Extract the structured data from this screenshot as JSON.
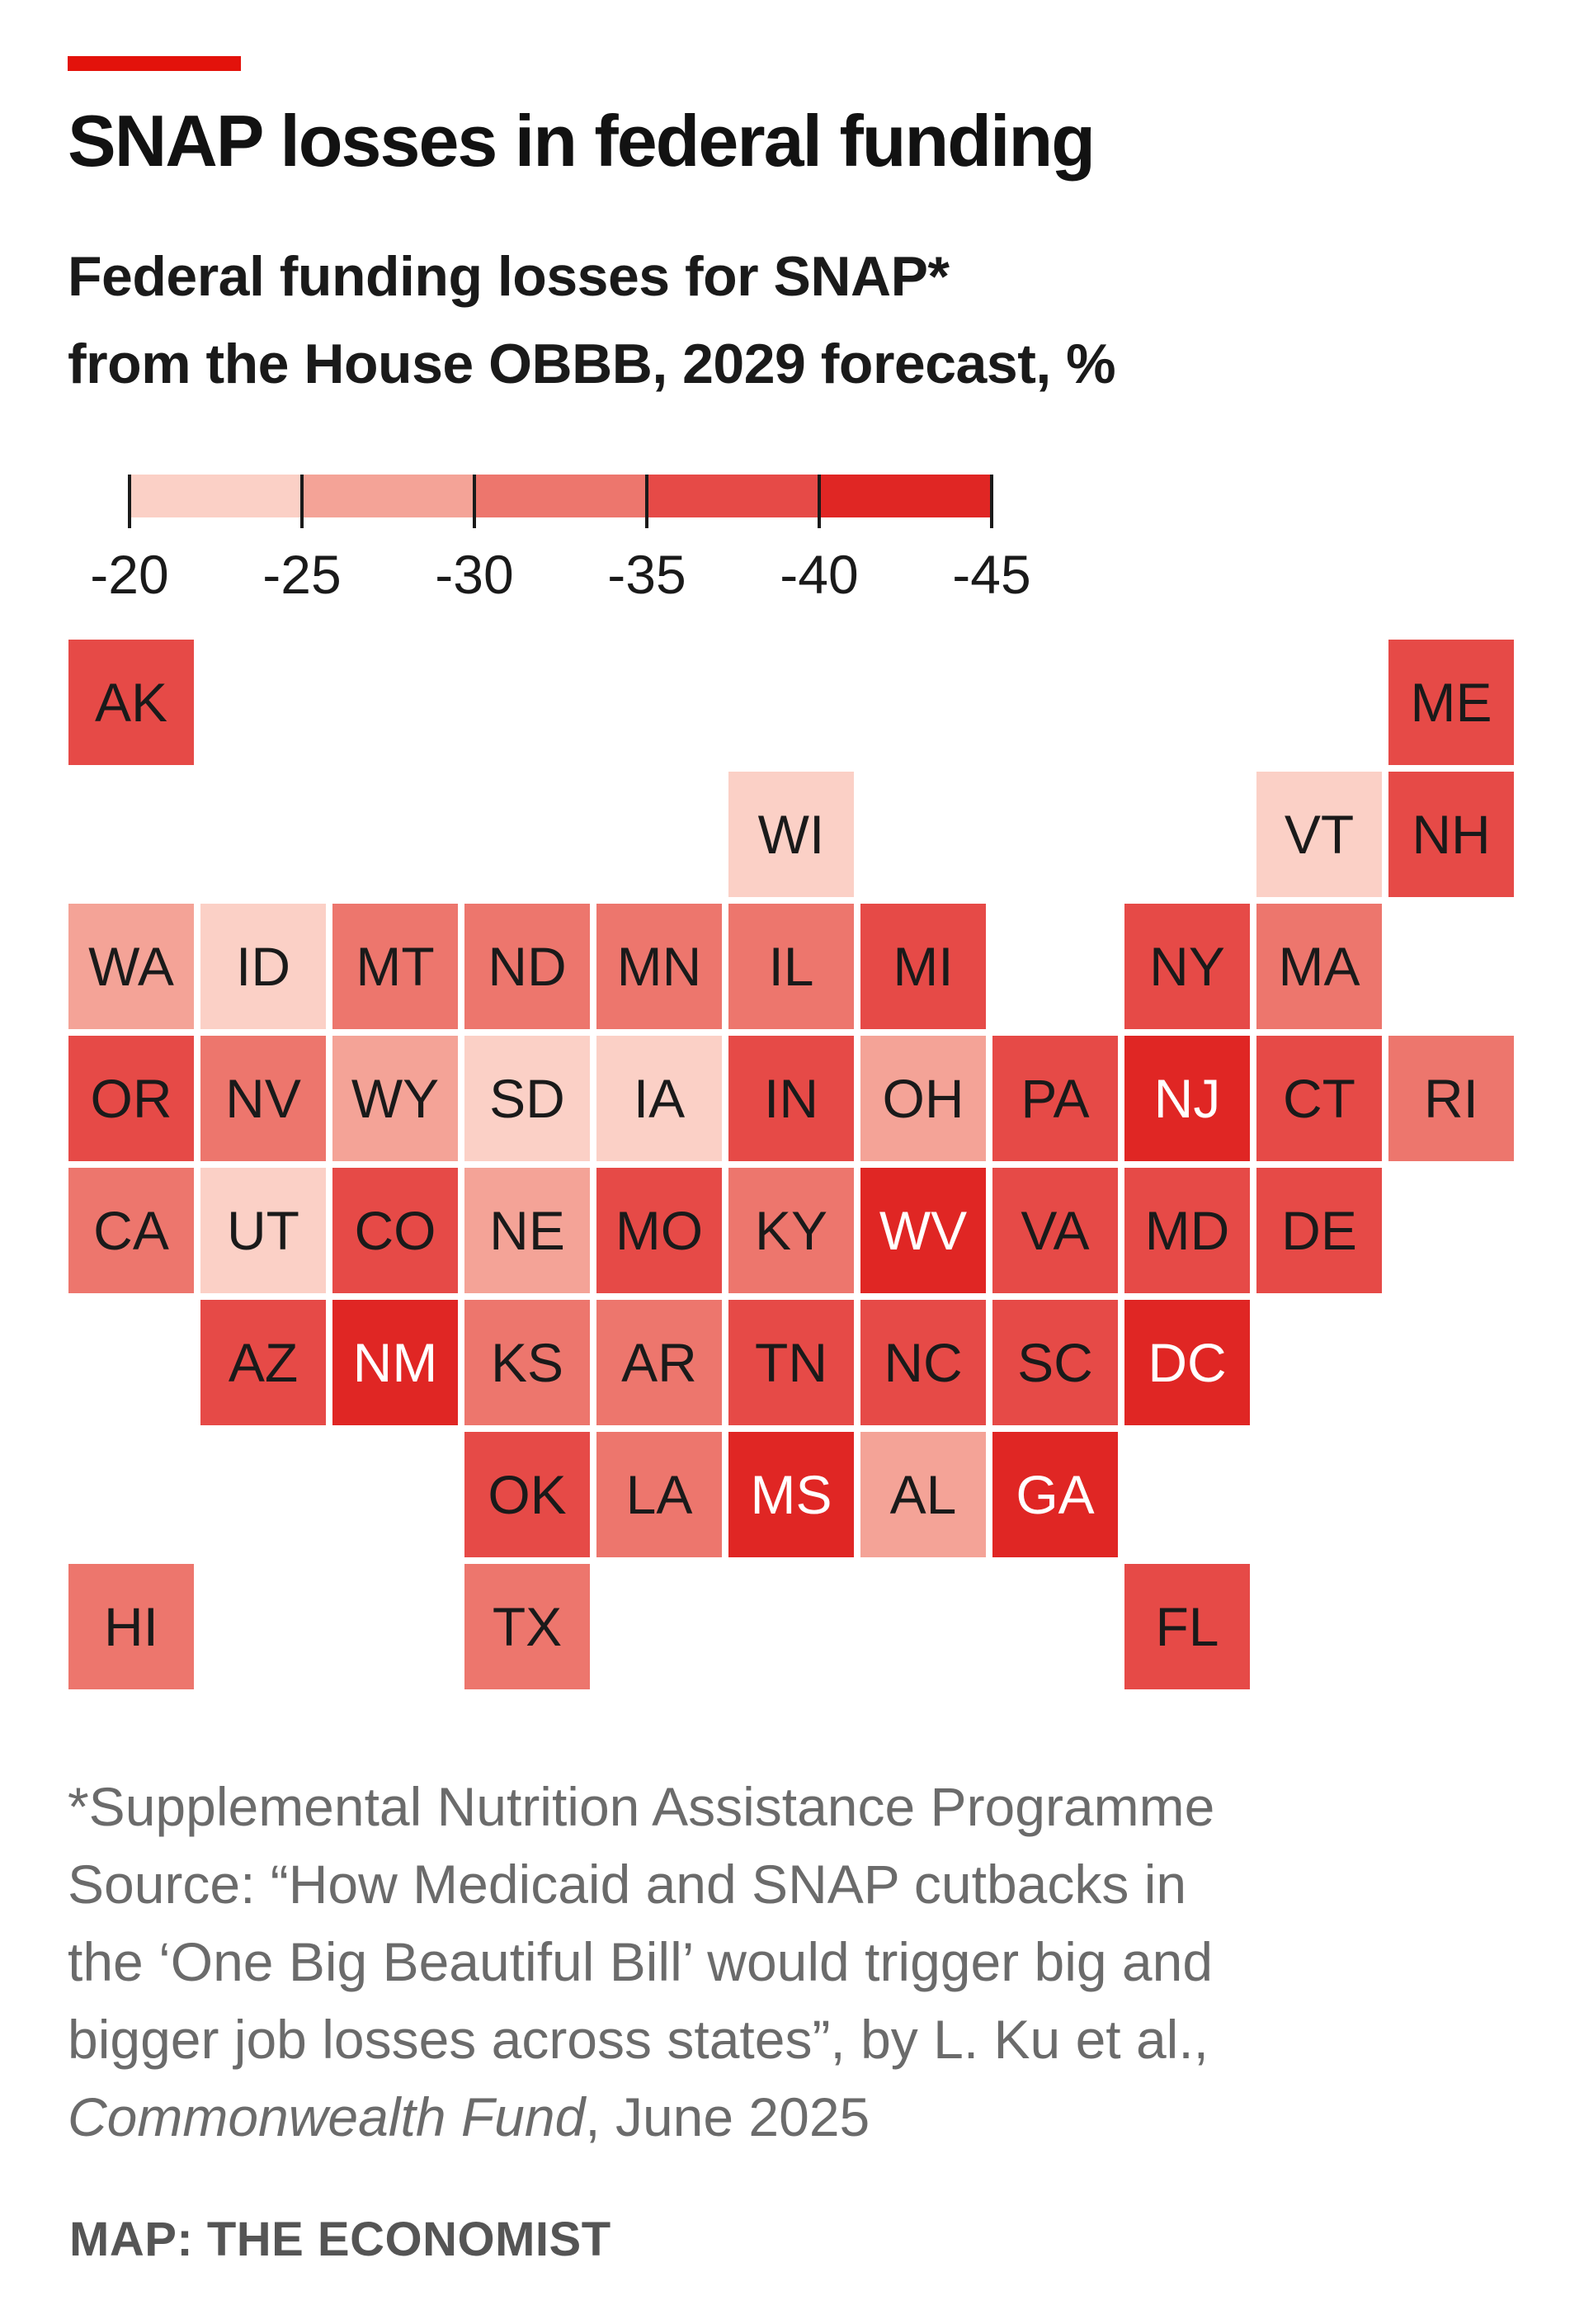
{
  "header": {
    "title": "SNAP losses in federal funding",
    "subtitle_line1": "Federal funding losses for SNAP*",
    "subtitle_line2": "from the House OBBB, 2029 forecast, %"
  },
  "colors": {
    "accent": "#e3120b",
    "bins": [
      "#fbd0c6",
      "#f4a397",
      "#ed766d",
      "#e64a47",
      "#e02624"
    ]
  },
  "legend": {
    "labels": [
      "-20",
      "-25",
      "-30",
      "-35",
      "-40",
      "-45"
    ]
  },
  "chart_data": {
    "type": "tile-map",
    "value_unit": "% change in federal SNAP funding (legend bin)",
    "bins": [
      {
        "range": [
          -20,
          -25
        ]
      },
      {
        "range": [
          -25,
          -30
        ]
      },
      {
        "range": [
          -30,
          -35
        ]
      },
      {
        "range": [
          -35,
          -40
        ]
      },
      {
        "range": [
          -40,
          -45
        ]
      }
    ],
    "states": [
      {
        "abbr": "AK",
        "col": 0,
        "row": 0,
        "bin": 3
      },
      {
        "abbr": "ME",
        "col": 10,
        "row": 0,
        "bin": 3
      },
      {
        "abbr": "WI",
        "col": 5,
        "row": 1,
        "bin": 0
      },
      {
        "abbr": "VT",
        "col": 9,
        "row": 1,
        "bin": 0
      },
      {
        "abbr": "NH",
        "col": 10,
        "row": 1,
        "bin": 3
      },
      {
        "abbr": "WA",
        "col": 0,
        "row": 2,
        "bin": 1
      },
      {
        "abbr": "ID",
        "col": 1,
        "row": 2,
        "bin": 0
      },
      {
        "abbr": "MT",
        "col": 2,
        "row": 2,
        "bin": 2
      },
      {
        "abbr": "ND",
        "col": 3,
        "row": 2,
        "bin": 2
      },
      {
        "abbr": "MN",
        "col": 4,
        "row": 2,
        "bin": 2
      },
      {
        "abbr": "IL",
        "col": 5,
        "row": 2,
        "bin": 2
      },
      {
        "abbr": "MI",
        "col": 6,
        "row": 2,
        "bin": 3
      },
      {
        "abbr": "NY",
        "col": 8,
        "row": 2,
        "bin": 3
      },
      {
        "abbr": "MA",
        "col": 9,
        "row": 2,
        "bin": 2
      },
      {
        "abbr": "OR",
        "col": 0,
        "row": 3,
        "bin": 3
      },
      {
        "abbr": "NV",
        "col": 1,
        "row": 3,
        "bin": 2
      },
      {
        "abbr": "WY",
        "col": 2,
        "row": 3,
        "bin": 1
      },
      {
        "abbr": "SD",
        "col": 3,
        "row": 3,
        "bin": 0
      },
      {
        "abbr": "IA",
        "col": 4,
        "row": 3,
        "bin": 0
      },
      {
        "abbr": "IN",
        "col": 5,
        "row": 3,
        "bin": 3
      },
      {
        "abbr": "OH",
        "col": 6,
        "row": 3,
        "bin": 1
      },
      {
        "abbr": "PA",
        "col": 7,
        "row": 3,
        "bin": 3
      },
      {
        "abbr": "NJ",
        "col": 8,
        "row": 3,
        "bin": 4
      },
      {
        "abbr": "CT",
        "col": 9,
        "row": 3,
        "bin": 3
      },
      {
        "abbr": "RI",
        "col": 10,
        "row": 3,
        "bin": 2
      },
      {
        "abbr": "CA",
        "col": 0,
        "row": 4,
        "bin": 2
      },
      {
        "abbr": "UT",
        "col": 1,
        "row": 4,
        "bin": 0
      },
      {
        "abbr": "CO",
        "col": 2,
        "row": 4,
        "bin": 3
      },
      {
        "abbr": "NE",
        "col": 3,
        "row": 4,
        "bin": 1
      },
      {
        "abbr": "MO",
        "col": 4,
        "row": 4,
        "bin": 3
      },
      {
        "abbr": "KY",
        "col": 5,
        "row": 4,
        "bin": 2
      },
      {
        "abbr": "WV",
        "col": 6,
        "row": 4,
        "bin": 4
      },
      {
        "abbr": "VA",
        "col": 7,
        "row": 4,
        "bin": 3
      },
      {
        "abbr": "MD",
        "col": 8,
        "row": 4,
        "bin": 3
      },
      {
        "abbr": "DE",
        "col": 9,
        "row": 4,
        "bin": 3
      },
      {
        "abbr": "AZ",
        "col": 1,
        "row": 5,
        "bin": 3
      },
      {
        "abbr": "NM",
        "col": 2,
        "row": 5,
        "bin": 4
      },
      {
        "abbr": "KS",
        "col": 3,
        "row": 5,
        "bin": 2
      },
      {
        "abbr": "AR",
        "col": 4,
        "row": 5,
        "bin": 2
      },
      {
        "abbr": "TN",
        "col": 5,
        "row": 5,
        "bin": 3
      },
      {
        "abbr": "NC",
        "col": 6,
        "row": 5,
        "bin": 3
      },
      {
        "abbr": "SC",
        "col": 7,
        "row": 5,
        "bin": 3
      },
      {
        "abbr": "DC",
        "col": 8,
        "row": 5,
        "bin": 4
      },
      {
        "abbr": "OK",
        "col": 3,
        "row": 6,
        "bin": 3
      },
      {
        "abbr": "LA",
        "col": 4,
        "row": 6,
        "bin": 2
      },
      {
        "abbr": "MS",
        "col": 5,
        "row": 6,
        "bin": 4
      },
      {
        "abbr": "AL",
        "col": 6,
        "row": 6,
        "bin": 1
      },
      {
        "abbr": "GA",
        "col": 7,
        "row": 6,
        "bin": 4
      },
      {
        "abbr": "HI",
        "col": 0,
        "row": 7,
        "bin": 2
      },
      {
        "abbr": "TX",
        "col": 3,
        "row": 7,
        "bin": 2
      },
      {
        "abbr": "FL",
        "col": 8,
        "row": 7,
        "bin": 3
      }
    ]
  },
  "footnote": {
    "line1": "*Supplemental Nutrition Assistance Programme",
    "line2": "Source: “How Medicaid and SNAP cutbacks in",
    "line3": "the ‘One Big Beautiful Bill’ would trigger big and",
    "line4": "bigger job losses across states”, by L. Ku et al.,",
    "line5_italic": "Commonwealth Fund",
    "line5_rest": ", June 2025"
  },
  "credit": "MAP: THE ECONOMIST"
}
